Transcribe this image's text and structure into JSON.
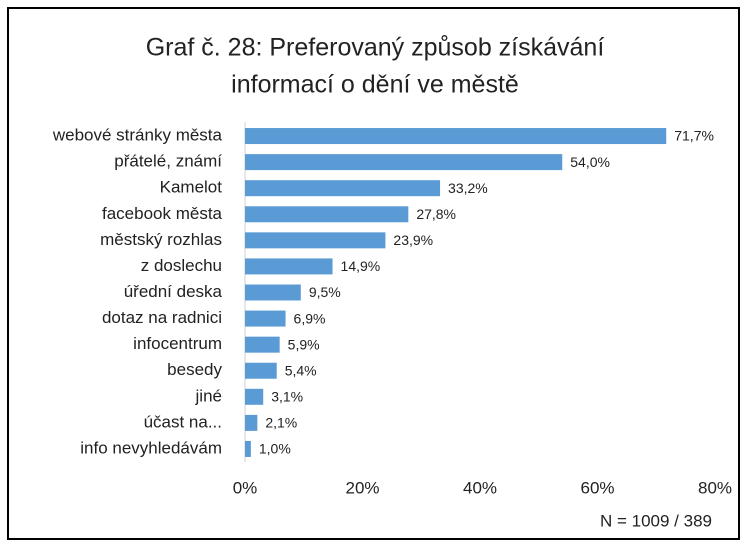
{
  "chart_data": {
    "type": "bar",
    "orientation": "horizontal",
    "title": [
      "Graf č. 28: Preferovaný způsob získávání",
      "informací o dění ve městě"
    ],
    "categories": [
      "webové stránky města",
      "přátelé, známí",
      "Kamelot",
      "facebook města",
      "městský rozhlas",
      "z doslechu",
      "úřední deska",
      "dotaz na radnici",
      "infocentrum",
      "besedy",
      "jiné",
      "účast na...",
      "info nevyhledávám"
    ],
    "values": [
      71.7,
      54.0,
      33.2,
      27.8,
      23.9,
      14.9,
      9.5,
      6.9,
      5.9,
      5.4,
      3.1,
      2.1,
      1.0
    ],
    "value_labels": [
      "71,7%",
      "54,0%",
      "33,2%",
      "27,8%",
      "23,9%",
      "14,9%",
      "9,5%",
      "6,9%",
      "5,9%",
      "5,4%",
      "3,1%",
      "2,1%",
      "1,0%"
    ],
    "color": "#5b9bd5",
    "xlim": [
      0,
      80
    ],
    "xticks": [
      {
        "value": 0,
        "label": "0%"
      },
      {
        "value": 20,
        "label": "20%"
      },
      {
        "value": 40,
        "label": "40%"
      },
      {
        "value": 60,
        "label": "60%"
      },
      {
        "value": 80,
        "label": "80%"
      }
    ],
    "grid": false,
    "annotation": "N = 1009 / 389"
  }
}
